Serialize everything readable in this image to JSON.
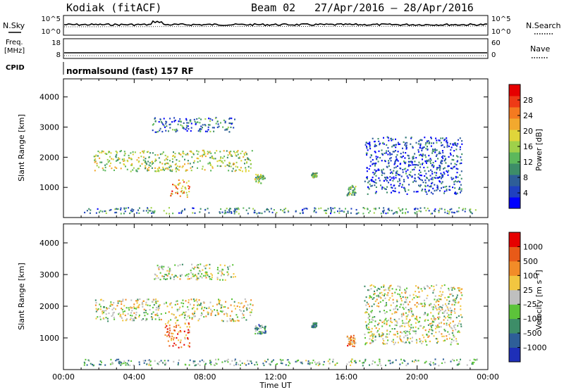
{
  "header": {
    "station": "Kodiak (fitACF)",
    "beam": "Beam 02",
    "date_range": "27/Apr/2016 – 28/Apr/2016"
  },
  "panels": {
    "nsky": {
      "left_label": "N.Sky",
      "right_label": "N.Search",
      "left_ticks": [
        "10^5",
        "10^0"
      ],
      "right_ticks": [
        "10^5",
        "10^0"
      ]
    },
    "freq": {
      "left_label_1": "Freq.",
      "left_label_2": "[MHz]",
      "right_label": "Nave",
      "left_ticks": [
        "18",
        "8"
      ],
      "right_ticks": [
        "60",
        "0"
      ]
    },
    "cpid": {
      "label": "CPID",
      "mode": "normalsound (fast) 157 RF"
    }
  },
  "chart_data": [
    {
      "type": "heatmap",
      "title": "Power",
      "xlabel": "",
      "ylabel": "Slant Range [km]",
      "xlim": [
        "00:00",
        "24:00"
      ],
      "ylim": [
        0,
        4600
      ],
      "yticks": [
        "1000",
        "2000",
        "3000",
        "4000"
      ],
      "colorbar": {
        "label": "Power [dB]",
        "ticks": [
          "28",
          "24",
          "20",
          "16",
          "12",
          "8",
          "4"
        ],
        "colors": [
          "#0000ff",
          "#1f40c0",
          "#2e5e98",
          "#3d8d68",
          "#5cb85c",
          "#9fd14a",
          "#e0d53a",
          "#f2a92e",
          "#f47a20",
          "#ee3a16",
          "#e60000"
        ]
      },
      "scatter_regions": [
        {
          "t0": 5.0,
          "t1": 9.7,
          "r0": 2850,
          "r1": 3350,
          "level": 0.25
        },
        {
          "t0": 1.7,
          "t1": 10.7,
          "r0": 1550,
          "r1": 2250,
          "level": 0.5
        },
        {
          "t0": 6.0,
          "t1": 7.1,
          "r0": 700,
          "r1": 1300,
          "level": 0.7
        },
        {
          "t0": 10.8,
          "t1": 11.4,
          "r0": 1150,
          "r1": 1450,
          "level": 0.45
        },
        {
          "t0": 14.0,
          "t1": 14.3,
          "r0": 1350,
          "r1": 1500,
          "level": 0.45
        },
        {
          "t0": 16.0,
          "t1": 16.5,
          "r0": 750,
          "r1": 1100,
          "level": 0.4
        },
        {
          "t0": 17.0,
          "t1": 22.5,
          "r0": 800,
          "r1": 2700,
          "level": 0.15
        },
        {
          "t0": 1.0,
          "t1": 23.5,
          "r0": 150,
          "r1": 350,
          "level": 0.3
        }
      ]
    },
    {
      "type": "heatmap",
      "title": "Velocity",
      "xlabel": "Time UT",
      "ylabel": "Slant Range [km]",
      "xlim": [
        "00:00",
        "24:00"
      ],
      "ylim": [
        0,
        4600
      ],
      "xticks": [
        "00:00",
        "04:00",
        "08:00",
        "12:00",
        "16:00",
        "20:00",
        "00:00"
      ],
      "yticks": [
        "1000",
        "2000",
        "3000",
        "4000"
      ],
      "colorbar": {
        "label": "Velocity [m s⁻¹]",
        "ticks": [
          "1000",
          "500",
          "100",
          "25",
          "–25",
          "–100",
          "–500",
          "–1000"
        ],
        "colors": [
          "#1e2fb8",
          "#2e5e98",
          "#3d8d68",
          "#5cc33a",
          "#bfbfbf",
          "#f2c640",
          "#f28c28",
          "#e85a18",
          "#e60000"
        ]
      },
      "scatter_regions": [
        {
          "t0": 5.0,
          "t1": 9.7,
          "r0": 2850,
          "r1": 3350,
          "level": 0.5
        },
        {
          "t0": 1.7,
          "t1": 10.7,
          "r0": 1550,
          "r1": 2250,
          "level": 0.5
        },
        {
          "t0": 5.7,
          "t1": 7.1,
          "r0": 700,
          "r1": 1500,
          "level": 0.75
        },
        {
          "t0": 10.8,
          "t1": 11.4,
          "r0": 1150,
          "r1": 1450,
          "level": 0.3
        },
        {
          "t0": 14.0,
          "t1": 14.3,
          "r0": 1350,
          "r1": 1500,
          "level": 0.3
        },
        {
          "t0": 16.0,
          "t1": 16.5,
          "r0": 750,
          "r1": 1100,
          "level": 0.7
        },
        {
          "t0": 17.0,
          "t1": 22.5,
          "r0": 800,
          "r1": 2700,
          "level": 0.5
        },
        {
          "t0": 1.0,
          "t1": 23.5,
          "r0": 150,
          "r1": 350,
          "level": 0.35
        }
      ]
    }
  ]
}
